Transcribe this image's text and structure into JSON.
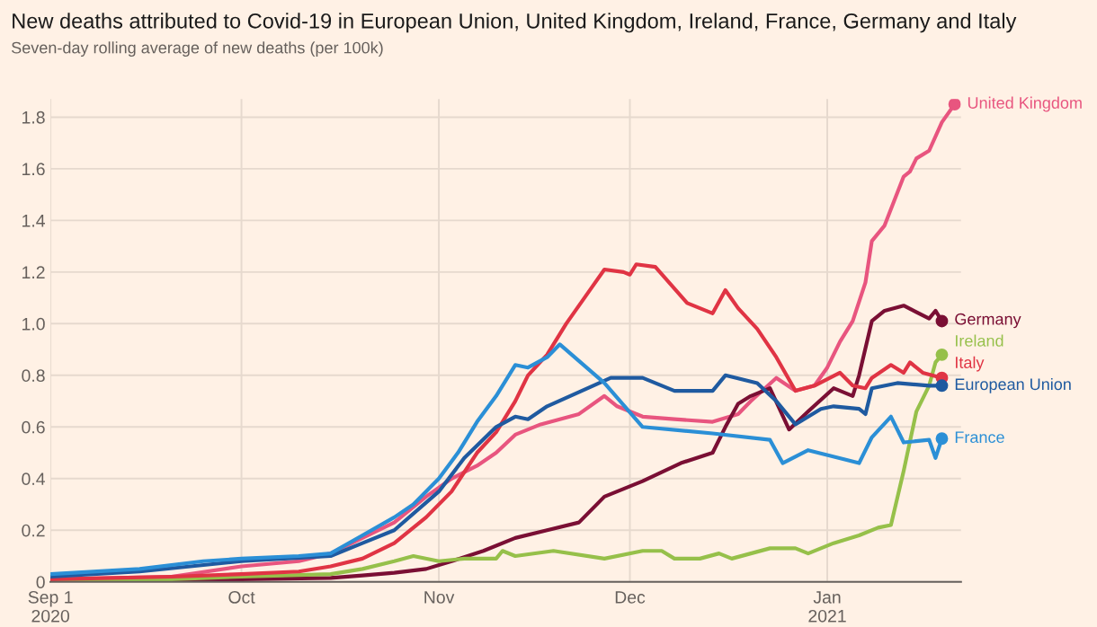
{
  "chart_data": {
    "type": "line",
    "title": "New deaths attributed to Covid-19 in European Union, United Kingdom, Ireland, France, Germany and Italy",
    "subtitle": "Seven-day rolling average of new deaths (per 100k)",
    "xlim": [
      "2020-09-01",
      "2021-01-22"
    ],
    "xticks": [
      {
        "value": "2020-09-01",
        "label": "Sep 1\n2020"
      },
      {
        "value": "2020-10-01",
        "label": "Oct"
      },
      {
        "value": "2020-11-01",
        "label": "Nov"
      },
      {
        "value": "2020-12-01",
        "label": "Dec"
      },
      {
        "value": "2021-01-01",
        "label": "Jan\n2021"
      }
    ],
    "ylim": [
      0,
      1.87
    ],
    "yticks": [
      0,
      0.2,
      0.4,
      0.6,
      0.8,
      {
        "value": 1,
        "label": "1.0"
      },
      1.2,
      1.4,
      1.6,
      1.8
    ],
    "grid": true,
    "legend": false,
    "marker": "none",
    "line_style": "solid",
    "series": [
      {
        "name": "United Kingdom",
        "color": "#e8557f",
        "x": [
          "2020-09-01",
          "2020-09-20",
          "2020-10-01",
          "2020-10-10",
          "2020-10-15",
          "2020-10-20",
          "2020-10-25",
          "2020-10-30",
          "2020-11-03",
          "2020-11-07",
          "2020-11-10",
          "2020-11-13",
          "2020-11-17",
          "2020-11-23",
          "2020-11-27",
          "2020-11-29",
          "2020-12-03",
          "2020-12-08",
          "2020-12-14",
          "2020-12-18",
          "2020-12-20",
          "2020-12-24",
          "2020-12-27",
          "2020-12-30",
          "2021-01-01",
          "2021-01-03",
          "2021-01-05",
          "2021-01-07",
          "2021-01-08",
          "2021-01-10",
          "2021-01-13",
          "2021-01-14",
          "2021-01-15",
          "2021-01-17",
          "2021-01-19",
          "2021-01-21"
        ],
        "values": [
          0.01,
          0.02,
          0.06,
          0.08,
          0.11,
          0.17,
          0.23,
          0.33,
          0.4,
          0.45,
          0.5,
          0.57,
          0.61,
          0.65,
          0.72,
          0.68,
          0.64,
          0.63,
          0.62,
          0.65,
          0.7,
          0.79,
          0.74,
          0.76,
          0.83,
          0.93,
          1.01,
          1.16,
          1.32,
          1.38,
          1.57,
          1.59,
          1.64,
          1.67,
          1.78,
          1.85
        ]
      },
      {
        "name": "Germany",
        "color": "#7a0f34",
        "x": [
          "2020-09-01",
          "2020-10-01",
          "2020-10-15",
          "2020-10-20",
          "2020-10-25",
          "2020-10-30",
          "2020-11-03",
          "2020-11-08",
          "2020-11-13",
          "2020-11-18",
          "2020-11-23",
          "2020-11-27",
          "2020-12-03",
          "2020-12-09",
          "2020-12-14",
          "2020-12-16",
          "2020-12-18",
          "2020-12-20",
          "2020-12-23",
          "2020-12-26",
          "2020-12-29",
          "2021-01-02",
          "2021-01-05",
          "2021-01-06",
          "2021-01-08",
          "2021-01-10",
          "2021-01-13",
          "2021-01-17",
          "2021-01-18",
          "2021-01-19"
        ],
        "values": [
          0.005,
          0.01,
          0.015,
          0.025,
          0.035,
          0.05,
          0.08,
          0.12,
          0.17,
          0.2,
          0.23,
          0.33,
          0.39,
          0.46,
          0.5,
          0.6,
          0.69,
          0.72,
          0.75,
          0.59,
          0.66,
          0.75,
          0.72,
          0.8,
          1.01,
          1.05,
          1.07,
          1.02,
          1.05,
          1.01
        ]
      },
      {
        "name": "Ireland",
        "color": "#96c04a",
        "x": [
          "2020-09-01",
          "2020-09-20",
          "2020-10-01",
          "2020-10-15",
          "2020-10-20",
          "2020-10-25",
          "2020-10-28",
          "2020-11-01",
          "2020-11-05",
          "2020-11-10",
          "2020-11-11",
          "2020-11-13",
          "2020-11-19",
          "2020-11-27",
          "2020-12-03",
          "2020-12-06",
          "2020-12-08",
          "2020-12-12",
          "2020-12-15",
          "2020-12-17",
          "2020-12-23",
          "2020-12-27",
          "2020-12-29",
          "2021-01-02",
          "2021-01-06",
          "2021-01-09",
          "2021-01-11",
          "2021-01-13",
          "2021-01-15",
          "2021-01-17",
          "2021-01-18",
          "2021-01-19"
        ],
        "values": [
          0.0,
          0.01,
          0.02,
          0.03,
          0.05,
          0.08,
          0.1,
          0.08,
          0.09,
          0.09,
          0.12,
          0.1,
          0.12,
          0.09,
          0.12,
          0.12,
          0.09,
          0.09,
          0.11,
          0.09,
          0.13,
          0.13,
          0.11,
          0.15,
          0.18,
          0.21,
          0.22,
          0.43,
          0.66,
          0.76,
          0.85,
          0.88
        ]
      },
      {
        "name": "Italy",
        "color": "#e03444",
        "x": [
          "2020-09-01",
          "2020-09-20",
          "2020-10-01",
          "2020-10-10",
          "2020-10-15",
          "2020-10-20",
          "2020-10-25",
          "2020-10-30",
          "2020-11-03",
          "2020-11-07",
          "2020-11-10",
          "2020-11-13",
          "2020-11-15",
          "2020-11-18",
          "2020-11-21",
          "2020-11-25",
          "2020-11-27",
          "2020-11-30",
          "2020-12-01",
          "2020-12-02",
          "2020-12-05",
          "2020-12-10",
          "2020-12-14",
          "2020-12-16",
          "2020-12-18",
          "2020-12-21",
          "2020-12-24",
          "2020-12-27",
          "2020-12-30",
          "2021-01-03",
          "2021-01-05",
          "2021-01-07",
          "2021-01-08",
          "2021-01-11",
          "2021-01-13",
          "2021-01-14",
          "2021-01-16",
          "2021-01-19"
        ],
        "values": [
          0.01,
          0.02,
          0.03,
          0.04,
          0.06,
          0.09,
          0.15,
          0.25,
          0.35,
          0.5,
          0.58,
          0.7,
          0.8,
          0.88,
          1.0,
          1.14,
          1.21,
          1.2,
          1.19,
          1.23,
          1.22,
          1.08,
          1.04,
          1.13,
          1.06,
          0.98,
          0.87,
          0.74,
          0.76,
          0.81,
          0.76,
          0.75,
          0.79,
          0.84,
          0.81,
          0.85,
          0.81,
          0.79
        ]
      },
      {
        "name": "European Union",
        "color": "#1f5aa0",
        "x": [
          "2020-09-01",
          "2020-09-15",
          "2020-10-01",
          "2020-10-15",
          "2020-10-20",
          "2020-10-25",
          "2020-11-01",
          "2020-11-05",
          "2020-11-10",
          "2020-11-13",
          "2020-11-15",
          "2020-11-18",
          "2020-11-28",
          "2020-12-03",
          "2020-12-08",
          "2020-12-14",
          "2020-12-16",
          "2020-12-21",
          "2020-12-24",
          "2020-12-27",
          "2020-12-31",
          "2021-01-02",
          "2021-01-06",
          "2021-01-07",
          "2021-01-08",
          "2021-01-12",
          "2021-01-17",
          "2021-01-19"
        ],
        "values": [
          0.02,
          0.04,
          0.08,
          0.1,
          0.15,
          0.2,
          0.35,
          0.48,
          0.6,
          0.64,
          0.63,
          0.68,
          0.79,
          0.79,
          0.74,
          0.74,
          0.8,
          0.77,
          0.7,
          0.61,
          0.67,
          0.68,
          0.67,
          0.65,
          0.75,
          0.77,
          0.76,
          0.76
        ]
      },
      {
        "name": "France",
        "color": "#2b8fd6",
        "x": [
          "2020-09-01",
          "2020-09-15",
          "2020-09-25",
          "2020-10-01",
          "2020-10-10",
          "2020-10-15",
          "2020-10-20",
          "2020-10-25",
          "2020-10-28",
          "2020-11-01",
          "2020-11-04",
          "2020-11-07",
          "2020-11-10",
          "2020-11-13",
          "2020-11-15",
          "2020-11-18",
          "2020-11-20",
          "2020-11-27",
          "2020-12-03",
          "2020-12-14",
          "2020-12-23",
          "2020-12-25",
          "2020-12-29",
          "2021-01-06",
          "2021-01-08",
          "2021-01-11",
          "2021-01-13",
          "2021-01-17",
          "2021-01-18",
          "2021-01-19"
        ],
        "values": [
          0.03,
          0.05,
          0.08,
          0.09,
          0.1,
          0.11,
          0.18,
          0.25,
          0.3,
          0.4,
          0.5,
          0.62,
          0.72,
          0.84,
          0.83,
          0.87,
          0.92,
          0.77,
          0.6,
          0.575,
          0.55,
          0.46,
          0.51,
          0.46,
          0.56,
          0.64,
          0.54,
          0.55,
          0.48,
          0.555
        ]
      }
    ]
  }
}
